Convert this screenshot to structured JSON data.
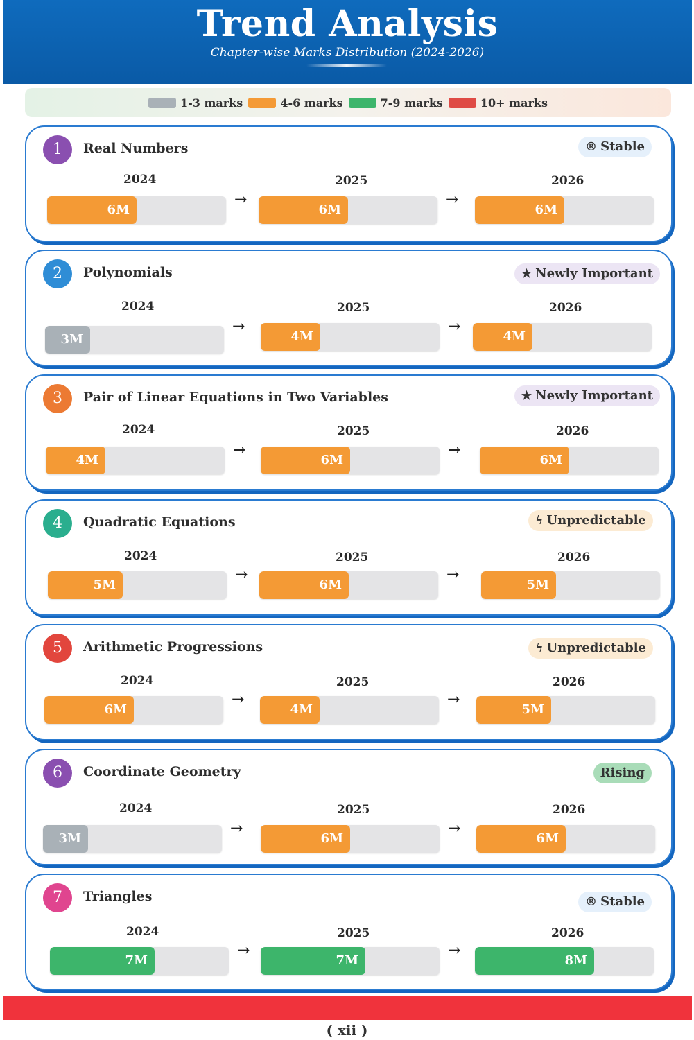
{
  "header": {
    "title": "Trend Analysis",
    "subtitle": "Chapter-wise Marks Distribution (2024-2026)"
  },
  "legend": [
    {
      "label": "1-3 marks",
      "color": "#a9b1b7"
    },
    {
      "label": "4-6 marks",
      "color": "#f49a35"
    },
    {
      "label": "7-9 marks",
      "color": "#3db56b"
    },
    {
      "label": "10+ marks",
      "color": "#df4b45"
    }
  ],
  "footer": {
    "page": "( xii )"
  },
  "chart_data": {
    "type": "bar",
    "title": "Trend Analysis",
    "subtitle": "Chapter-wise Marks Distribution (2024-2026)",
    "categories": [
      "2024",
      "2025",
      "2026"
    ],
    "max_marks": 12,
    "chapters": [
      {
        "number": "1",
        "name": "Real Numbers",
        "tag": "Stable",
        "tag_icon": "®",
        "tag_kind": "stable",
        "circle_color": "#8a4fb0",
        "values": [
          6,
          6,
          6
        ],
        "labels": [
          "6M",
          "6M",
          "6M"
        ],
        "colors": [
          "#f49a35",
          "#f49a35",
          "#f49a35"
        ]
      },
      {
        "number": "2",
        "name": "Polynomials",
        "tag": "Newly Important",
        "tag_icon": "★",
        "tag_kind": "new",
        "circle_color": "#2f8dd6",
        "values": [
          3,
          4,
          4
        ],
        "labels": [
          "3M",
          "4M",
          "4M"
        ],
        "colors": [
          "#a9b1b7",
          "#f49a35",
          "#f49a35"
        ]
      },
      {
        "number": "3",
        "name": "Pair of Linear Equations in Two Variables",
        "tag": "Newly Important",
        "tag_icon": "★",
        "tag_kind": "new",
        "circle_color": "#ec7a33",
        "values": [
          4,
          6,
          6
        ],
        "labels": [
          "4M",
          "6M",
          "6M"
        ],
        "colors": [
          "#f49a35",
          "#f49a35",
          "#f49a35"
        ]
      },
      {
        "number": "4",
        "name": "Quadratic Equations",
        "tag": "Unpredictable",
        "tag_icon": "ϟ",
        "tag_kind": "unpred",
        "circle_color": "#2aae8e",
        "values": [
          5,
          6,
          5
        ],
        "labels": [
          "5M",
          "6M",
          "5M"
        ],
        "colors": [
          "#f49a35",
          "#f49a35",
          "#f49a35"
        ]
      },
      {
        "number": "5",
        "name": "Arithmetic Progressions",
        "tag": "Unpredictable",
        "tag_icon": "ϟ",
        "tag_kind": "unpred",
        "circle_color": "#e2463d",
        "values": [
          6,
          4,
          5
        ],
        "labels": [
          "6M",
          "4M",
          "5M"
        ],
        "colors": [
          "#f49a35",
          "#f49a35",
          "#f49a35"
        ]
      },
      {
        "number": "6",
        "name": "Coordinate Geometry",
        "tag": "Rising",
        "tag_icon": "",
        "tag_kind": "rising",
        "circle_color": "#8a4fb0",
        "values": [
          3,
          6,
          6
        ],
        "labels": [
          "3M",
          "6M",
          "6M"
        ],
        "colors": [
          "#a9b1b7",
          "#f49a35",
          "#f49a35"
        ]
      },
      {
        "number": "7",
        "name": "Triangles",
        "tag": "Stable",
        "tag_icon": "®",
        "tag_kind": "stable",
        "circle_color": "#e0458f",
        "values": [
          7,
          7,
          8
        ],
        "labels": [
          "7M",
          "7M",
          "8M"
        ],
        "colors": [
          "#3db56b",
          "#3db56b",
          "#3db56b"
        ]
      }
    ]
  }
}
